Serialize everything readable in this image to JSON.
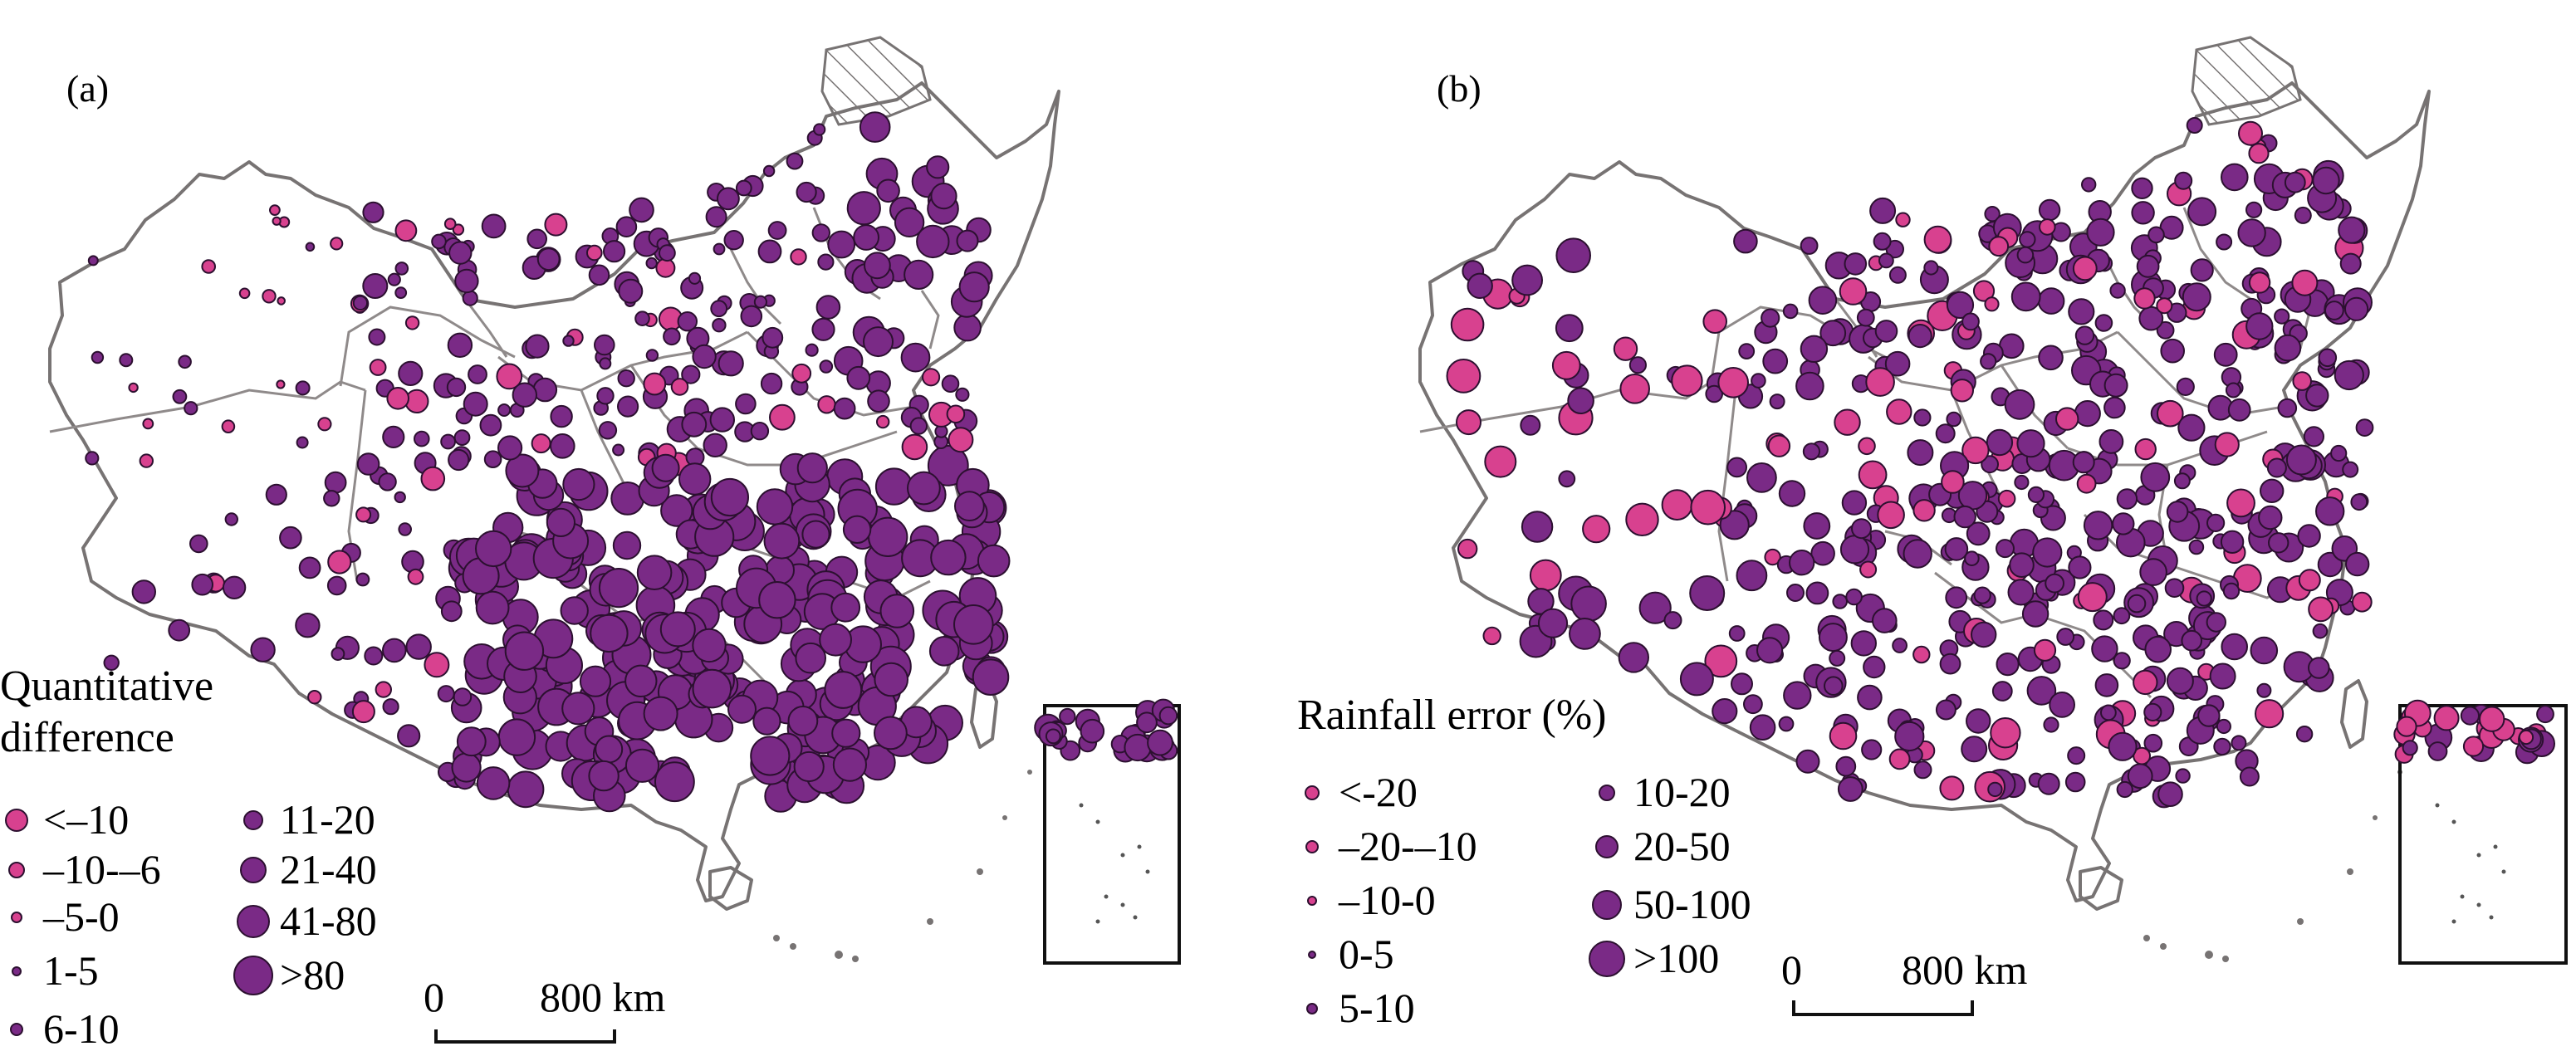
{
  "colors": {
    "purple": "#7a2a86",
    "pink": "#d8418f",
    "border": "#777373"
  },
  "panels": [
    {
      "label": "(a)",
      "legend_title": "Quantitative difference",
      "legend_title_lines": [
        "Quantitative",
        "difference"
      ],
      "legend": [
        {
          "label": "<–10",
          "color": "pink"
        },
        {
          "label": "–10-–6",
          "color": "pink"
        },
        {
          "label": "–5-0",
          "color": "pink"
        },
        {
          "label": "1-5",
          "color": "purple"
        },
        {
          "label": "6-10",
          "color": "purple"
        },
        {
          "label": "11-20",
          "color": "purple"
        },
        {
          "label": "21-40",
          "color": "purple"
        },
        {
          "label": "41-80",
          "color": "purple"
        },
        {
          "label": ">80",
          "color": "purple"
        }
      ],
      "scale": {
        "zero": "0",
        "dist": "800 km"
      }
    },
    {
      "label": "(b)",
      "legend_title": "Rainfall error (%)",
      "legend": [
        {
          "label": "<-20",
          "color": "pink"
        },
        {
          "label": "–20-–10",
          "color": "pink"
        },
        {
          "label": "–10-0",
          "color": "pink"
        },
        {
          "label": "0-5",
          "color": "purple"
        },
        {
          "label": "5-10",
          "color": "purple"
        },
        {
          "label": "10-20",
          "color": "purple"
        },
        {
          "label": "20-50",
          "color": "purple"
        },
        {
          "label": "50-100",
          "color": "purple"
        },
        {
          "label": ">100",
          "color": "purple"
        }
      ],
      "scale": {
        "zero": "0",
        "dist": "800 km"
      }
    }
  ]
}
